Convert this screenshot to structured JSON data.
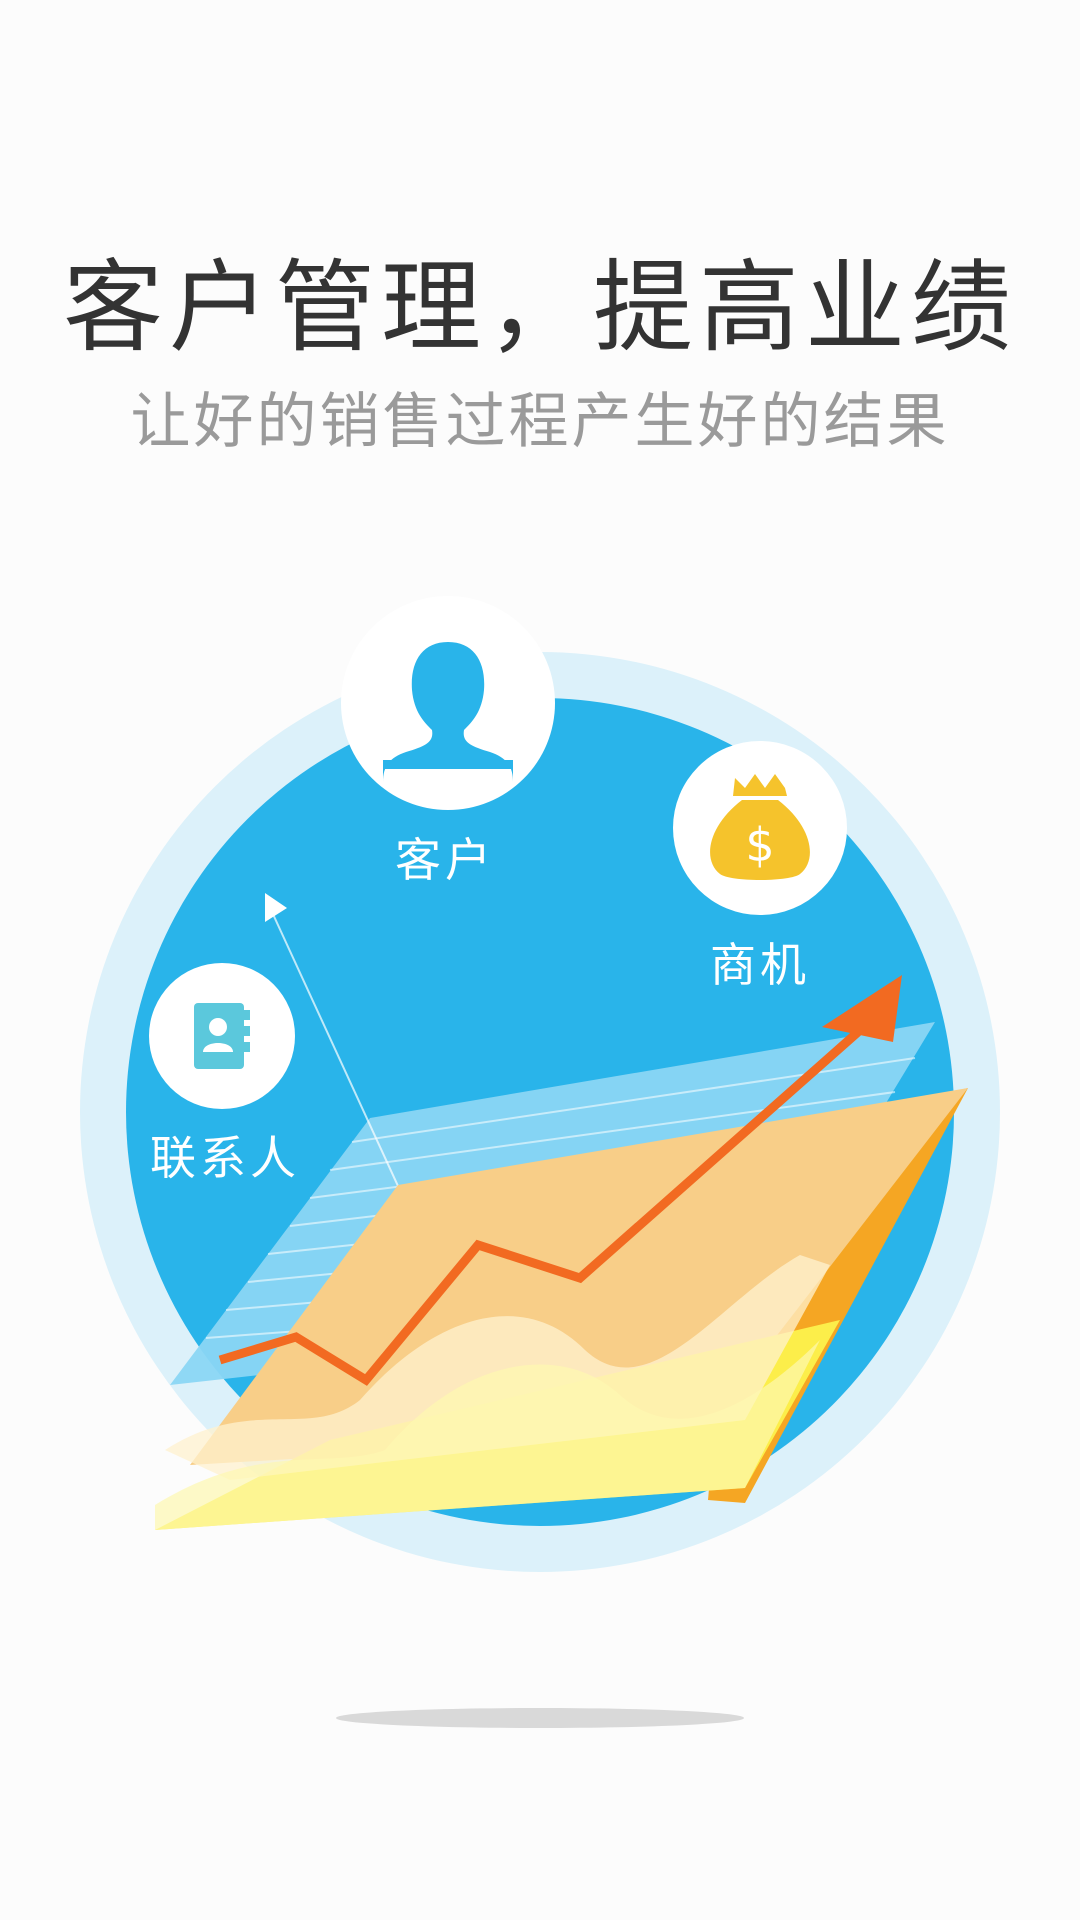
{
  "header": {
    "title": "客户管理，提高业绩",
    "subtitle": "让好的销售过程产生好的结果"
  },
  "features": {
    "customer_label": "客户",
    "deal_label": "商机",
    "contact_label": "联系人"
  },
  "icons": {
    "customer": "person-icon",
    "deal": "money-bag-icon",
    "contact": "address-book-icon"
  },
  "colors": {
    "primary_blue": "#29b4ea",
    "light_blue_ring": "#dcf1fa",
    "orange_arrow": "#f26a21",
    "gold": "#f5a623",
    "yellow": "#fcee4a",
    "money_bag": "#f5c32c",
    "contact_icon": "#5bc8dc"
  }
}
